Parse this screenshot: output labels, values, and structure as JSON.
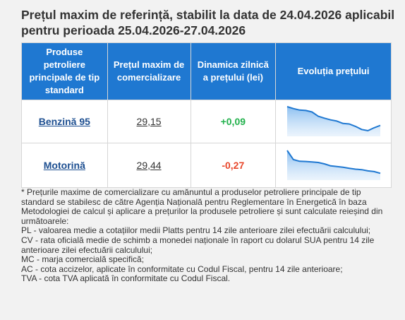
{
  "title": "Prețul maxim de referință, stabilit la data de 24.04.2026 aplicabil pentru perioada 25.04.2026-27.04.2026",
  "table": {
    "headers": [
      "Produse petroliere principale de tip standard",
      "Prețul maxim de comercializare",
      "Dinamica zilnică a prețului (lei)",
      "Evoluția prețului"
    ],
    "rows": [
      {
        "product": "Benzină 95",
        "price": "29,15",
        "delta": "+0,09",
        "trend": "up",
        "sparkline": [
          1.0,
          0.92,
          0.86,
          0.84,
          0.78,
          0.6,
          0.52,
          0.45,
          0.4,
          0.3,
          0.28,
          0.18,
          0.05,
          0.0,
          0.12,
          0.22
        ]
      },
      {
        "product": "Motorină",
        "price": "29,44",
        "delta": "-0,27",
        "trend": "down",
        "sparkline": [
          1.0,
          0.62,
          0.55,
          0.54,
          0.52,
          0.5,
          0.44,
          0.36,
          0.33,
          0.3,
          0.26,
          0.22,
          0.2,
          0.15,
          0.12,
          0.05
        ]
      }
    ],
    "colors": {
      "header_bg": "#1f78d1",
      "positive": "#22b14c",
      "negative": "#e8472b",
      "spark_line": "#1f78d1"
    }
  },
  "notes": [
    "* Prețurile maxime de comercializare cu amănuntul a produselor petroliere principale de tip standard se stabilesc de către Agenția Națională pentru Reglementare în Energetică în baza Metodologiei de calcul și aplicare a prețurilor la produsele petroliere și sunt calculate reieșind din următoarele:",
    "PL - valoarea medie a cotațiilor medii Platts pentru 14 zile anterioare zilei efectuării calculului;",
    "CV - rata oficială medie de schimb a monedei naționale în raport cu dolarul SUA pentru 14 zile anterioare zilei efectuării calculului;",
    "MC - marja comercială specifică;",
    "AC - cota accizelor, aplicate în conformitate cu Codul Fiscal, pentru 14 zile anterioare;",
    "TVA - cota TVA aplicată în conformitate cu Codul Fiscal."
  ]
}
